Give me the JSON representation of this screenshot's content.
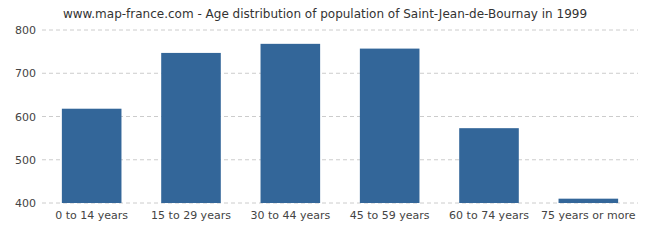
{
  "chart_data": {
    "type": "bar",
    "title": "www.map-france.com - Age distribution of population of Saint-Jean-de-Bournay in 1999",
    "categories": [
      "0 to 14 years",
      "15 to 29 years",
      "30 to 44 years",
      "45 to 59 years",
      "60 to 74 years",
      "75 years or more"
    ],
    "values": [
      618,
      747,
      768,
      757,
      573,
      410
    ],
    "color": "#336699",
    "ylim": [
      400,
      800
    ],
    "yticks": [
      400,
      500,
      600,
      700,
      800
    ],
    "grid": true
  }
}
